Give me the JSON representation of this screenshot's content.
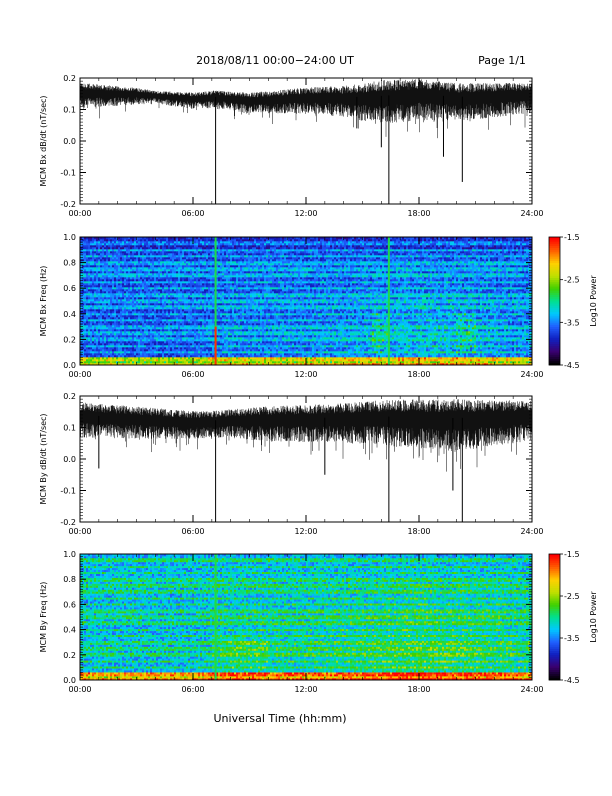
{
  "header": {
    "title": "2018/08/11   00:00−24:00 UT",
    "page": "Page 1/1"
  },
  "colors": {
    "trace": "#000000",
    "frame": "#000000",
    "colormap": [
      "#000000",
      "#3a0070",
      "#1020c0",
      "#2060ff",
      "#00c8ff",
      "#00e090",
      "#40d000",
      "#c0e000",
      "#ffd000",
      "#ff6000",
      "#ff0000"
    ]
  },
  "chart_data": [
    {
      "type": "line",
      "name": "bx-dbdt",
      "ylabel": "MCM Bx dB/dt (nT/sec)",
      "xlim": [
        0,
        24
      ],
      "ylim": [
        -0.2,
        0.2
      ],
      "xticks": [
        "00:00",
        "06:00",
        "12:00",
        "18:00",
        "24:00"
      ],
      "yticks": [
        "-0.2",
        "-0.1",
        "0.0",
        "0.1",
        "0.2"
      ],
      "baseline": [
        [
          0,
          0.155
        ],
        [
          3,
          0.15
        ],
        [
          6,
          0.135
        ],
        [
          7.2,
          0.14
        ],
        [
          9,
          0.13
        ],
        [
          12,
          0.14
        ],
        [
          15,
          0.14
        ],
        [
          18,
          0.15
        ],
        [
          20,
          0.14
        ],
        [
          24,
          0.15
        ]
      ],
      "amplitude": [
        [
          0,
          0.03
        ],
        [
          4,
          0.015
        ],
        [
          7,
          0.02
        ],
        [
          10,
          0.025
        ],
        [
          14,
          0.035
        ],
        [
          16,
          0.05
        ],
        [
          19,
          0.045
        ],
        [
          24,
          0.035
        ]
      ],
      "spikes": [
        [
          7.2,
          -0.21
        ],
        [
          16.4,
          -0.21
        ],
        [
          16.0,
          -0.02
        ],
        [
          19.3,
          -0.05
        ],
        [
          20.3,
          -0.13
        ],
        [
          14.7,
          0.04
        ]
      ]
    },
    {
      "type": "heatmap",
      "name": "bx-spectrogram",
      "ylabel": "MCM Bx Freq (Hz)",
      "xlim": [
        0,
        24
      ],
      "ylim": [
        0,
        1.0
      ],
      "xticks": [
        "00:00",
        "06:00",
        "12:00",
        "18:00",
        "24:00"
      ],
      "yticks": [
        "0.0",
        "0.2",
        "0.4",
        "0.6",
        "0.8",
        "1.0"
      ],
      "colorbar": {
        "label": "Log10 Power",
        "range": [
          -4.5,
          -1.5
        ],
        "ticks": [
          "-1.5",
          "-2.5",
          "-3.5",
          "-4.5"
        ]
      },
      "harmonics_hz": [
        0.05,
        0.1,
        0.15,
        0.2,
        0.25,
        0.3,
        0.35,
        0.4,
        0.45,
        0.5,
        0.55,
        0.6,
        0.65,
        0.7,
        0.75,
        0.8,
        0.85,
        0.9,
        0.95
      ],
      "spike_times": [
        7.2,
        16.4
      ],
      "seed": 11
    },
    {
      "type": "line",
      "name": "by-dbdt",
      "ylabel": "MCM By dB/dt (nT/sec)",
      "xlim": [
        0,
        24
      ],
      "ylim": [
        -0.2,
        0.2
      ],
      "xticks": [
        "00:00",
        "06:00",
        "12:00",
        "18:00",
        "24:00"
      ],
      "yticks": [
        "-0.2",
        "-0.1",
        "0.0",
        "0.1",
        "0.2"
      ],
      "baseline": [
        [
          0,
          0.14
        ],
        [
          3,
          0.13
        ],
        [
          6,
          0.12
        ],
        [
          8,
          0.125
        ],
        [
          12,
          0.13
        ],
        [
          16,
          0.135
        ],
        [
          20,
          0.13
        ],
        [
          24,
          0.14
        ]
      ],
      "amplitude": [
        [
          0,
          0.04
        ],
        [
          4,
          0.035
        ],
        [
          7,
          0.03
        ],
        [
          10,
          0.04
        ],
        [
          14,
          0.045
        ],
        [
          17,
          0.055
        ],
        [
          20,
          0.06
        ],
        [
          24,
          0.045
        ]
      ],
      "spikes": [
        [
          7.2,
          -0.2
        ],
        [
          16.4,
          -0.2
        ],
        [
          20.3,
          -0.2
        ],
        [
          19.8,
          -0.1
        ],
        [
          13.0,
          -0.05
        ],
        [
          1.0,
          -0.03
        ]
      ]
    },
    {
      "type": "heatmap",
      "name": "by-spectrogram",
      "ylabel": "MCM By Freq (Hz)",
      "xlim": [
        0,
        24
      ],
      "ylim": [
        0,
        1.0
      ],
      "xticks": [
        "00:00",
        "06:00",
        "12:00",
        "18:00",
        "24:00"
      ],
      "yticks": [
        "0.0",
        "0.2",
        "0.4",
        "0.6",
        "0.8",
        "1.0"
      ],
      "colorbar": {
        "label": "Log10 Power",
        "range": [
          -4.5,
          -1.5
        ],
        "ticks": [
          "-1.5",
          "-2.5",
          "-3.5",
          "-4.5"
        ]
      },
      "harmonics_hz": [
        0.05,
        0.1,
        0.15,
        0.2,
        0.25,
        0.3,
        0.35,
        0.4,
        0.45,
        0.5,
        0.55,
        0.6,
        0.65,
        0.7,
        0.75,
        0.8,
        0.85,
        0.9,
        0.95
      ],
      "spike_times": [
        7.2
      ],
      "seed": 23
    }
  ],
  "xaxis_label": "Universal Time (hh:mm)"
}
